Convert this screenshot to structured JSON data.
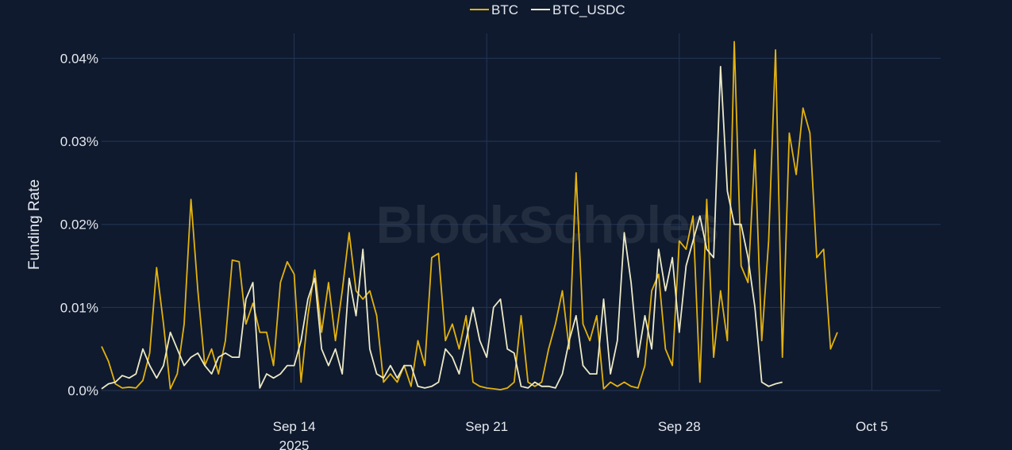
{
  "watermark": "BlockScholes",
  "colors": {
    "background": "#0f1a2e",
    "grid": "#243656",
    "BTC": "#e3b20f",
    "BTC_USDC": "#ece9c6"
  },
  "chart_data": {
    "type": "line",
    "title": "",
    "ylabel": "Funding Rate",
    "xlabel": "",
    "ylim": [
      0,
      0.00043
    ],
    "xlim": [
      "2025-09-07",
      "2025-10-07T12:00"
    ],
    "grid": true,
    "legend_position": "top-center",
    "y_ticks": [
      {
        "value": 0,
        "label": "0.0%"
      },
      {
        "value": 0.0001,
        "label": "0.01%"
      },
      {
        "value": 0.0002,
        "label": "0.02%"
      },
      {
        "value": 0.0003,
        "label": "0.03%"
      },
      {
        "value": 0.0004,
        "label": "0.04%"
      }
    ],
    "x_ticks": [
      {
        "value": "2025-09-14",
        "label": "Sep 14",
        "sublabel": "2025"
      },
      {
        "value": "2025-09-21",
        "label": "Sep 21",
        "sublabel": ""
      },
      {
        "value": "2025-09-28",
        "label": "Sep 28",
        "sublabel": ""
      },
      {
        "value": "2025-10-05",
        "label": "Oct 5",
        "sublabel": ""
      }
    ],
    "series": [
      {
        "name": "BTC",
        "points": [
          [
            "2025-09-07 00:00",
            5.3e-05
          ],
          [
            "2025-09-07 06:00",
            3.5e-05
          ],
          [
            "2025-09-07 12:00",
            8e-06
          ],
          [
            "2025-09-07 18:00",
            3e-06
          ],
          [
            "2025-09-08 00:00",
            4e-06
          ],
          [
            "2025-09-08 06:00",
            3e-06
          ],
          [
            "2025-09-08 12:00",
            1.2e-05
          ],
          [
            "2025-09-08 18:00",
            4.5e-05
          ],
          [
            "2025-09-09 00:00",
            0.000148
          ],
          [
            "2025-09-09 06:00",
            8e-05
          ],
          [
            "2025-09-09 12:00",
            2e-06
          ],
          [
            "2025-09-09 18:00",
            2e-05
          ],
          [
            "2025-09-10 00:00",
            8e-05
          ],
          [
            "2025-09-10 06:00",
            0.00023
          ],
          [
            "2025-09-10 12:00",
            0.00012
          ],
          [
            "2025-09-10 18:00",
            3e-05
          ],
          [
            "2025-09-11 00:00",
            5e-05
          ],
          [
            "2025-09-11 06:00",
            2e-05
          ],
          [
            "2025-09-11 12:00",
            6e-05
          ],
          [
            "2025-09-11 18:00",
            0.000157
          ],
          [
            "2025-09-12 00:00",
            0.000155
          ],
          [
            "2025-09-12 06:00",
            8e-05
          ],
          [
            "2025-09-12 12:00",
            0.000105
          ],
          [
            "2025-09-12 18:00",
            7e-05
          ],
          [
            "2025-09-13 00:00",
            7e-05
          ],
          [
            "2025-09-13 06:00",
            3e-05
          ],
          [
            "2025-09-13 12:00",
            0.00013
          ],
          [
            "2025-09-13 18:00",
            0.000155
          ],
          [
            "2025-09-14 00:00",
            0.00014
          ],
          [
            "2025-09-14 06:00",
            1e-05
          ],
          [
            "2025-09-14 12:00",
            9e-05
          ],
          [
            "2025-09-14 18:00",
            0.000145
          ],
          [
            "2025-09-15 00:00",
            7e-05
          ],
          [
            "2025-09-15 06:00",
            0.00013
          ],
          [
            "2025-09-15 12:00",
            6e-05
          ],
          [
            "2025-09-15 18:00",
            0.00012
          ],
          [
            "2025-09-16 00:00",
            0.00019
          ],
          [
            "2025-09-16 06:00",
            0.00012
          ],
          [
            "2025-09-16 12:00",
            0.00011
          ],
          [
            "2025-09-16 18:00",
            0.00012
          ],
          [
            "2025-09-17 00:00",
            9e-05
          ],
          [
            "2025-09-17 06:00",
            1e-05
          ],
          [
            "2025-09-17 12:00",
            2e-05
          ],
          [
            "2025-09-17 18:00",
            1e-05
          ],
          [
            "2025-09-18 00:00",
            3e-05
          ],
          [
            "2025-09-18 06:00",
            5e-06
          ],
          [
            "2025-09-18 12:00",
            6e-05
          ],
          [
            "2025-09-18 18:00",
            3e-05
          ],
          [
            "2025-09-19 00:00",
            0.00016
          ],
          [
            "2025-09-19 06:00",
            0.000165
          ],
          [
            "2025-09-19 12:00",
            6e-05
          ],
          [
            "2025-09-19 18:00",
            8e-05
          ],
          [
            "2025-09-20 00:00",
            5e-05
          ],
          [
            "2025-09-20 06:00",
            9e-05
          ],
          [
            "2025-09-20 12:00",
            1e-05
          ],
          [
            "2025-09-20 18:00",
            5e-06
          ],
          [
            "2025-09-21 00:00",
            3e-06
          ],
          [
            "2025-09-21 06:00",
            2e-06
          ],
          [
            "2025-09-21 12:00",
            1e-06
          ],
          [
            "2025-09-21 18:00",
            3e-06
          ],
          [
            "2025-09-22 00:00",
            1e-05
          ],
          [
            "2025-09-22 06:00",
            9e-05
          ],
          [
            "2025-09-22 12:00",
            1e-05
          ],
          [
            "2025-09-22 18:00",
            5e-06
          ],
          [
            "2025-09-23 00:00",
            1e-05
          ],
          [
            "2025-09-23 06:00",
            5e-05
          ],
          [
            "2025-09-23 12:00",
            8e-05
          ],
          [
            "2025-09-23 18:00",
            0.00012
          ],
          [
            "2025-09-24 00:00",
            5e-05
          ],
          [
            "2025-09-24 06:00",
            0.000262
          ],
          [
            "2025-09-24 12:00",
            8e-05
          ],
          [
            "2025-09-24 18:00",
            6e-05
          ],
          [
            "2025-09-25 00:00",
            9e-05
          ],
          [
            "2025-09-25 06:00",
            2e-06
          ],
          [
            "2025-09-25 12:00",
            1e-05
          ],
          [
            "2025-09-25 18:00",
            5e-06
          ],
          [
            "2025-09-26 00:00",
            1e-05
          ],
          [
            "2025-09-26 06:00",
            5e-06
          ],
          [
            "2025-09-26 12:00",
            3e-06
          ],
          [
            "2025-09-26 18:00",
            3e-05
          ],
          [
            "2025-09-27 00:00",
            0.00012
          ],
          [
            "2025-09-27 06:00",
            0.00014
          ],
          [
            "2025-09-27 12:00",
            5e-05
          ],
          [
            "2025-09-27 18:00",
            3e-05
          ],
          [
            "2025-09-28 00:00",
            0.00018
          ],
          [
            "2025-09-28 06:00",
            0.00017
          ],
          [
            "2025-09-28 12:00",
            0.00021
          ],
          [
            "2025-09-28 18:00",
            1e-05
          ],
          [
            "2025-09-29 00:00",
            0.00023
          ],
          [
            "2025-09-29 06:00",
            4e-05
          ],
          [
            "2025-09-29 12:00",
            0.00012
          ],
          [
            "2025-09-29 18:00",
            6e-05
          ],
          [
            "2025-09-30 00:00",
            0.00042
          ],
          [
            "2025-09-30 06:00",
            0.00015
          ],
          [
            "2025-09-30 12:00",
            0.00013
          ],
          [
            "2025-09-30 18:00",
            0.00029
          ],
          [
            "2025-10-01 00:00",
            6e-05
          ],
          [
            "2025-10-01 06:00",
            0.00018
          ],
          [
            "2025-10-01 12:00",
            0.00041
          ],
          [
            "2025-10-01 18:00",
            4e-05
          ],
          [
            "2025-10-02 00:00",
            0.00031
          ],
          [
            "2025-10-02 06:00",
            0.00026
          ],
          [
            "2025-10-02 12:00",
            0.00034
          ],
          [
            "2025-10-02 18:00",
            0.00031
          ],
          [
            "2025-10-03 00:00",
            0.00016
          ],
          [
            "2025-10-03 06:00",
            0.00017
          ],
          [
            "2025-10-03 12:00",
            5e-05
          ],
          [
            "2025-10-03 18:00",
            7e-05
          ]
        ]
      },
      {
        "name": "BTC_USDC",
        "points": [
          [
            "2025-09-07 00:00",
            2e-06
          ],
          [
            "2025-09-07 06:00",
            8e-06
          ],
          [
            "2025-09-07 12:00",
            1e-05
          ],
          [
            "2025-09-07 18:00",
            1.8e-05
          ],
          [
            "2025-09-08 00:00",
            1.5e-05
          ],
          [
            "2025-09-08 06:00",
            2e-05
          ],
          [
            "2025-09-08 12:00",
            5e-05
          ],
          [
            "2025-09-08 18:00",
            3e-05
          ],
          [
            "2025-09-09 00:00",
            1.5e-05
          ],
          [
            "2025-09-09 06:00",
            3e-05
          ],
          [
            "2025-09-09 12:00",
            7e-05
          ],
          [
            "2025-09-09 18:00",
            5e-05
          ],
          [
            "2025-09-10 00:00",
            3e-05
          ],
          [
            "2025-09-10 06:00",
            4e-05
          ],
          [
            "2025-09-10 12:00",
            4.5e-05
          ],
          [
            "2025-09-10 18:00",
            3e-05
          ],
          [
            "2025-09-11 00:00",
            2e-05
          ],
          [
            "2025-09-11 06:00",
            4e-05
          ],
          [
            "2025-09-11 12:00",
            4.5e-05
          ],
          [
            "2025-09-11 18:00",
            4e-05
          ],
          [
            "2025-09-12 00:00",
            4e-05
          ],
          [
            "2025-09-12 06:00",
            0.00011
          ],
          [
            "2025-09-12 12:00",
            0.00013
          ],
          [
            "2025-09-12 18:00",
            3e-06
          ],
          [
            "2025-09-13 00:00",
            2e-05
          ],
          [
            "2025-09-13 06:00",
            1.5e-05
          ],
          [
            "2025-09-13 12:00",
            2e-05
          ],
          [
            "2025-09-13 18:00",
            3e-05
          ],
          [
            "2025-09-14 00:00",
            3e-05
          ],
          [
            "2025-09-14 06:00",
            6e-05
          ],
          [
            "2025-09-14 12:00",
            0.00011
          ],
          [
            "2025-09-14 18:00",
            0.000135
          ],
          [
            "2025-09-15 00:00",
            5e-05
          ],
          [
            "2025-09-15 06:00",
            3e-05
          ],
          [
            "2025-09-15 12:00",
            5e-05
          ],
          [
            "2025-09-15 18:00",
            2e-05
          ],
          [
            "2025-09-16 00:00",
            0.000135
          ],
          [
            "2025-09-16 06:00",
            9e-05
          ],
          [
            "2025-09-16 12:00",
            0.00017
          ],
          [
            "2025-09-16 18:00",
            5e-05
          ],
          [
            "2025-09-17 00:00",
            2e-05
          ],
          [
            "2025-09-17 06:00",
            1.5e-05
          ],
          [
            "2025-09-17 12:00",
            3e-05
          ],
          [
            "2025-09-17 18:00",
            1.5e-05
          ],
          [
            "2025-09-18 00:00",
            3e-05
          ],
          [
            "2025-09-18 06:00",
            3e-05
          ],
          [
            "2025-09-18 12:00",
            5e-06
          ],
          [
            "2025-09-18 18:00",
            3e-06
          ],
          [
            "2025-09-19 00:00",
            5e-06
          ],
          [
            "2025-09-19 06:00",
            1e-05
          ],
          [
            "2025-09-19 12:00",
            5e-05
          ],
          [
            "2025-09-19 18:00",
            4e-05
          ],
          [
            "2025-09-20 00:00",
            2e-05
          ],
          [
            "2025-09-20 06:00",
            6e-05
          ],
          [
            "2025-09-20 12:00",
            0.0001
          ],
          [
            "2025-09-20 18:00",
            6e-05
          ],
          [
            "2025-09-21 00:00",
            4e-05
          ],
          [
            "2025-09-21 06:00",
            0.0001
          ],
          [
            "2025-09-21 12:00",
            0.00011
          ],
          [
            "2025-09-21 18:00",
            5e-05
          ],
          [
            "2025-09-22 00:00",
            4.5e-05
          ],
          [
            "2025-09-22 06:00",
            5e-06
          ],
          [
            "2025-09-22 12:00",
            3e-06
          ],
          [
            "2025-09-22 18:00",
            1e-05
          ],
          [
            "2025-09-23 00:00",
            5e-06
          ],
          [
            "2025-09-23 06:00",
            5e-06
          ],
          [
            "2025-09-23 12:00",
            3e-06
          ],
          [
            "2025-09-23 18:00",
            2e-05
          ],
          [
            "2025-09-24 00:00",
            6e-05
          ],
          [
            "2025-09-24 06:00",
            9e-05
          ],
          [
            "2025-09-24 12:00",
            3e-05
          ],
          [
            "2025-09-24 18:00",
            2e-05
          ],
          [
            "2025-09-25 00:00",
            2e-05
          ],
          [
            "2025-09-25 06:00",
            0.00011
          ],
          [
            "2025-09-25 12:00",
            2e-05
          ],
          [
            "2025-09-25 18:00",
            6e-05
          ],
          [
            "2025-09-26 00:00",
            0.00019
          ],
          [
            "2025-09-26 06:00",
            0.00013
          ],
          [
            "2025-09-26 12:00",
            4e-05
          ],
          [
            "2025-09-26 18:00",
            9e-05
          ],
          [
            "2025-09-27 00:00",
            5e-05
          ],
          [
            "2025-09-27 06:00",
            0.00017
          ],
          [
            "2025-09-27 12:00",
            0.00012
          ],
          [
            "2025-09-27 18:00",
            0.00016
          ],
          [
            "2025-09-28 00:00",
            7e-05
          ],
          [
            "2025-09-28 06:00",
            0.00015
          ],
          [
            "2025-09-28 12:00",
            0.00018
          ],
          [
            "2025-09-28 18:00",
            0.00021
          ],
          [
            "2025-09-29 00:00",
            0.00017
          ],
          [
            "2025-09-29 06:00",
            0.00016
          ],
          [
            "2025-09-29 12:00",
            0.00039
          ],
          [
            "2025-09-29 18:00",
            0.00024
          ],
          [
            "2025-09-30 00:00",
            0.0002
          ],
          [
            "2025-09-30 06:00",
            0.0002
          ],
          [
            "2025-09-30 12:00",
            0.00016
          ],
          [
            "2025-09-30 18:00",
            0.0001
          ],
          [
            "2025-10-01 00:00",
            1e-05
          ],
          [
            "2025-10-01 06:00",
            5e-06
          ],
          [
            "2025-10-01 12:00",
            8e-06
          ],
          [
            "2025-10-01 18:00",
            1e-05
          ]
        ]
      }
    ]
  }
}
